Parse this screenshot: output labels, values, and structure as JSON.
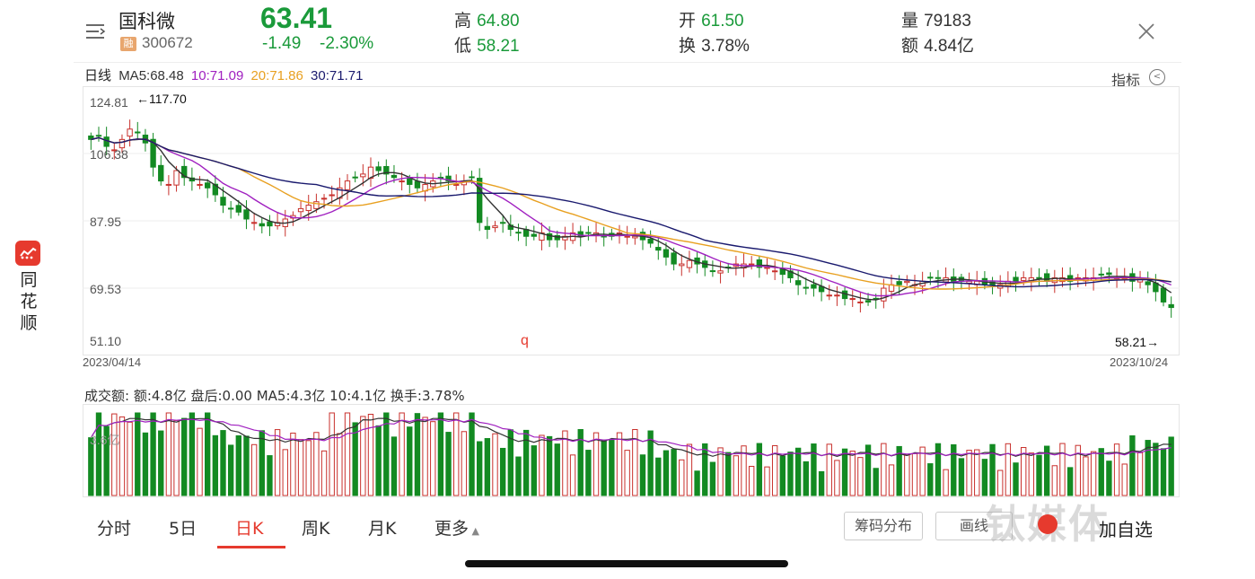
{
  "app": {
    "name": "同花顺",
    "watermark": "钛媒体"
  },
  "header": {
    "stock_name": "国科微",
    "badge": "融",
    "code": "300672",
    "price": "63.41",
    "change": "-1.49",
    "change_pct": "-2.30%",
    "high_label": "高",
    "high": "64.80",
    "low_label": "低",
    "low": "58.21",
    "open_label": "开",
    "open": "61.50",
    "turnover_label": "换",
    "turnover": "3.78%",
    "volume_label": "量",
    "volume": "79183",
    "amount_label": "额",
    "amount": "4.84亿"
  },
  "ma": {
    "title": "日线",
    "ma5": "MA5:68.48",
    "ma10": "10:71.09",
    "ma20": "20:71.86",
    "ma30": "30:71.71",
    "indicator_btn": "指标"
  },
  "axis": {
    "y_ticks": [
      "124.81",
      "106.38",
      "87.95",
      "69.53",
      "51.10"
    ],
    "start_date": "2023/04/14",
    "end_date": "2023/10/24",
    "high_marker": "←117.70",
    "low_marker": "58.21→"
  },
  "volume": {
    "legend": "成交额: 额:4.8亿 盘后:0.00 MA5:4.3亿 10:4.1亿 换手:3.78%",
    "y_tick": "3.6亿"
  },
  "tabs": [
    "分时",
    "5日",
    "日K",
    "周K",
    "月K",
    "更多"
  ],
  "buttons": {
    "chips": "筹码分布",
    "draw": "画线",
    "add_fav": "加自选"
  },
  "colors": {
    "up": "#c8302c",
    "down": "#138a22",
    "ma5": "#333333",
    "ma10": "#a020c0",
    "ma20": "#e8a020",
    "ma30": "#1a1a6e"
  },
  "chart_data": {
    "type": "candlestick",
    "y_range": [
      51.1,
      124.81
    ],
    "x_range": [
      "2023/04/14",
      "2023/10/24"
    ],
    "close_approx": [
      112,
      113,
      110,
      109,
      112,
      115,
      114,
      111,
      104,
      100,
      99,
      103,
      101,
      100,
      99,
      98,
      96,
      93,
      92,
      91,
      89,
      88,
      87,
      87,
      88,
      89,
      90,
      92,
      93,
      94,
      95,
      96,
      98,
      100,
      101,
      102,
      104,
      103,
      102,
      101,
      100,
      99,
      98,
      99,
      100,
      101,
      100,
      99,
      100,
      101,
      88,
      86,
      87,
      88,
      86,
      85,
      84,
      84,
      85,
      83,
      83,
      84,
      85,
      84,
      85,
      85,
      84,
      84,
      85,
      84,
      84,
      83,
      82,
      80,
      78,
      76,
      76,
      77,
      76,
      75,
      74,
      74,
      75,
      76,
      76,
      76,
      75,
      75,
      74,
      73,
      72,
      70,
      69,
      69,
      68,
      67,
      67,
      66,
      66,
      65,
      65,
      66,
      69,
      70,
      70,
      71,
      70,
      71,
      72,
      72,
      72,
      71,
      71,
      71,
      71,
      70,
      70,
      70,
      71,
      71,
      72,
      72,
      72,
      71,
      72,
      72,
      71,
      72,
      72,
      72,
      73,
      73,
      72,
      72,
      71,
      72,
      70,
      68,
      65,
      63.41
    ],
    "high": 117.7,
    "low": 58.21
  }
}
